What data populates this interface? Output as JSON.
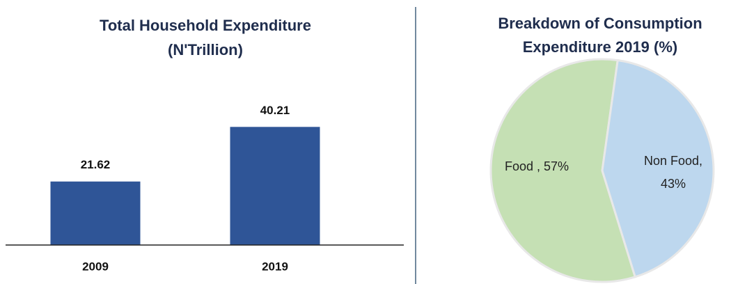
{
  "chart_data": [
    {
      "type": "bar",
      "title": [
        "Total Household Expenditure",
        "(N'Trillion)"
      ],
      "categories": [
        "2009",
        "2019"
      ],
      "values": [
        21.62,
        40.21
      ],
      "color": "#2f5597",
      "ylim": [
        0,
        50
      ]
    },
    {
      "type": "pie",
      "title": [
        "Breakdown of Consumption",
        "Expenditure 2019 (%)"
      ],
      "categories": [
        "Food",
        "Non Food"
      ],
      "values": [
        57,
        43
      ],
      "data_labels": [
        [
          "Food , 57%"
        ],
        [
          "Non Food,",
          "43%"
        ]
      ],
      "colors": [
        "#c5e0b4",
        "#bdd7ee"
      ]
    }
  ]
}
